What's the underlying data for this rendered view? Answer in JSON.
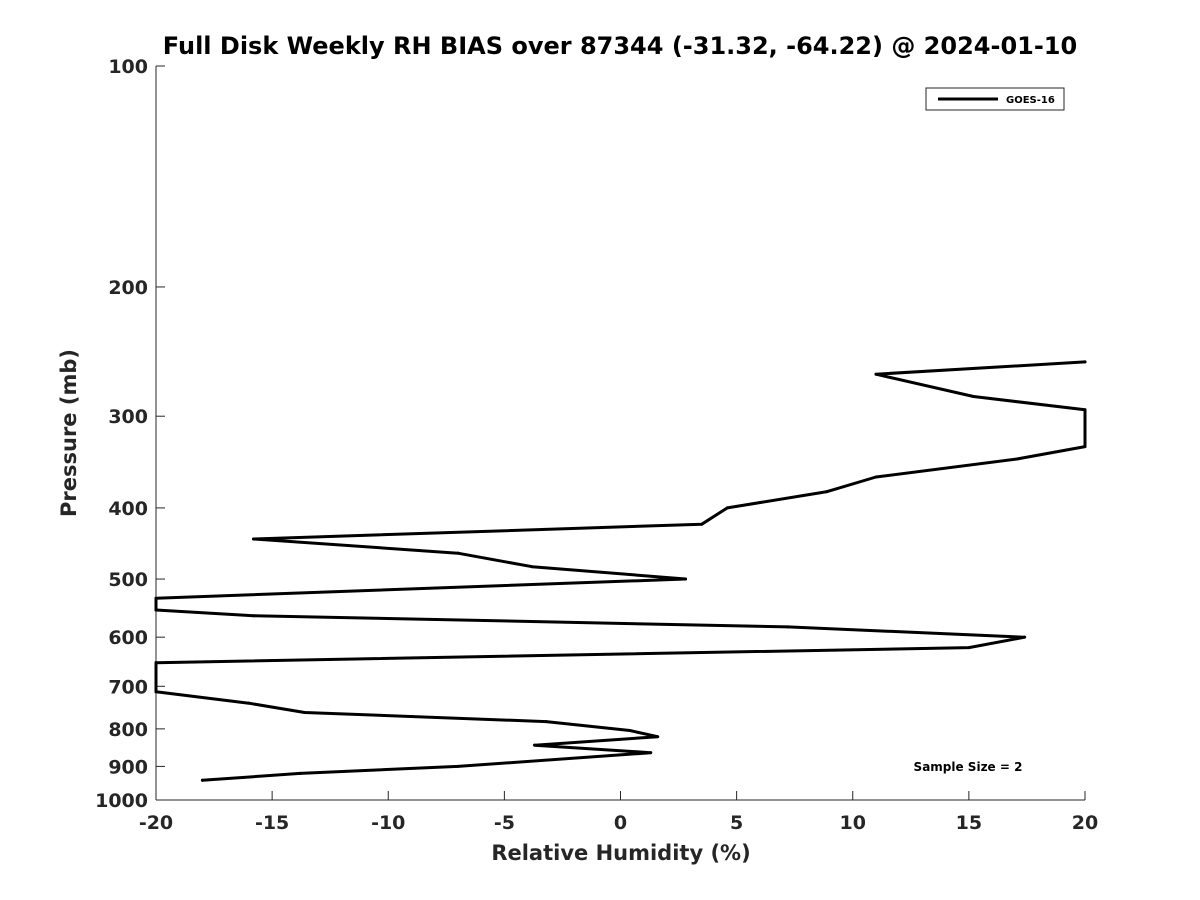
{
  "chart_data": {
    "type": "line",
    "title": "Full Disk Weekly RH BIAS over 87344 (-31.32, -64.22) @ 2024-01-10",
    "xlabel": "Relative Humidity (%)",
    "ylabel": "Pressure (mb)",
    "xlim": [
      -20,
      20
    ],
    "ylim": [
      100,
      1000
    ],
    "yscale": "log",
    "y_reversed": true,
    "grid": false,
    "xticks": [
      -20,
      -15,
      -10,
      -5,
      0,
      5,
      10,
      15,
      20
    ],
    "xtick_labels": [
      "-20",
      "-15",
      "-10",
      "-5",
      "0",
      "5",
      "10",
      "15",
      "20"
    ],
    "yticks": [
      100,
      200,
      300,
      400,
      500,
      600,
      700,
      800,
      900,
      1000
    ],
    "ytick_labels": [
      "100",
      "200",
      "300",
      "400",
      "500",
      "600",
      "700",
      "800",
      "900",
      "1000"
    ],
    "legend": {
      "position": "top-right",
      "entries": [
        "GOES-16"
      ]
    },
    "annotation": "Sample Size = 2",
    "series": [
      {
        "name": "GOES-16",
        "color": "#000000",
        "points": [
          [
            20.0,
            253
          ],
          [
            11.0,
            263
          ],
          [
            15.2,
            282
          ],
          [
            20.0,
            294
          ],
          [
            20.0,
            330
          ],
          [
            17.1,
            343
          ],
          [
            11.0,
            363
          ],
          [
            8.9,
            380
          ],
          [
            4.6,
            400
          ],
          [
            3.5,
            421
          ],
          [
            -15.8,
            441
          ],
          [
            -7.0,
            461
          ],
          [
            -3.8,
            481
          ],
          [
            2.8,
            500
          ],
          [
            -20.0,
            531
          ],
          [
            -20.0,
            551
          ],
          [
            -15.8,
            561
          ],
          [
            7.2,
            581
          ],
          [
            17.4,
            600
          ],
          [
            15.0,
            620
          ],
          [
            -20.0,
            650
          ],
          [
            -20.0,
            712
          ],
          [
            -16.0,
            738
          ],
          [
            -13.6,
            760
          ],
          [
            -3.2,
            782
          ],
          [
            0.4,
            804
          ],
          [
            1.6,
            820
          ],
          [
            -3.7,
            842
          ],
          [
            1.3,
            862
          ],
          [
            -7.0,
            900
          ],
          [
            -13.8,
            920
          ],
          [
            -18.0,
            940
          ]
        ]
      }
    ]
  }
}
